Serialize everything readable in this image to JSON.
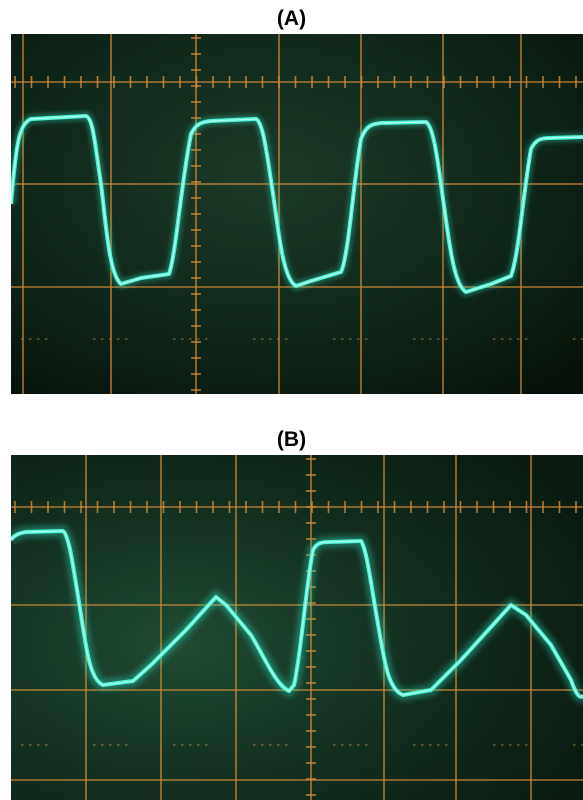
{
  "panels": [
    {
      "label": "(A)"
    },
    {
      "label": "(B)"
    }
  ],
  "colors": {
    "background": "#0d1f14",
    "graticule": "#d08a3a",
    "trace": "#4ff5d6",
    "trace_glow": "#2ad8b8"
  }
}
